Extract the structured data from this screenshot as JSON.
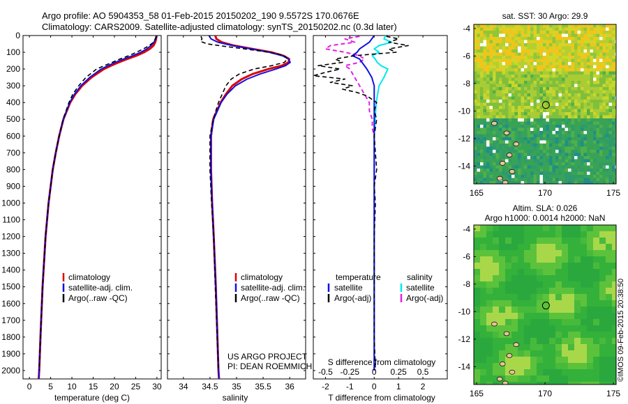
{
  "header": {
    "line1": "Argo profile: AO 5904353_58 01-Feb-2015 20150202_190 9.5572S 170.0676E",
    "line2": "Climatology: CARS2009. Satellite-adjusted climatology: synTS_20150202.nc (0.3d later)"
  },
  "colors": {
    "climatology": "#e00000",
    "satellite": "#1010e0",
    "argo": "#000000",
    "sat_salinity": "#00e8f0",
    "argo_salinity": "#e020e0"
  },
  "depth_axis": {
    "ylim": [
      0,
      2050
    ],
    "ticks": [
      "0",
      "100",
      "200",
      "300",
      "400",
      "500",
      "600",
      "700",
      "800",
      "900",
      "1000",
      "1100",
      "1200",
      "1300",
      "1400",
      "1500",
      "1600",
      "1700",
      "1800",
      "1900",
      "2000"
    ]
  },
  "chart_data": [
    {
      "type": "line",
      "name": "temperature-profile",
      "xlabel": "temperature (deg C)",
      "xlim": [
        -1.5,
        31
      ],
      "xticks": [
        "0",
        "5",
        "10",
        "15",
        "20",
        "25",
        "30"
      ],
      "legend": [
        "climatology",
        "satellite-adj. clim.",
        "Argo(..raw -QC)"
      ],
      "series": [
        {
          "name": "climatology",
          "depth": [
            0,
            20,
            40,
            60,
            80,
            100,
            120,
            140,
            160,
            180,
            200,
            250,
            300,
            350,
            400,
            500,
            600,
            700,
            800,
            1000,
            1200,
            1500,
            1800,
            2000,
            2050
          ],
          "values": [
            29.9,
            29.8,
            29.6,
            29.2,
            28.3,
            27.0,
            25.2,
            23.0,
            21.0,
            19.2,
            17.5,
            14.6,
            12.4,
            10.8,
            9.6,
            8.0,
            7.0,
            6.2,
            5.5,
            4.5,
            3.8,
            3.1,
            2.6,
            2.3,
            2.2
          ]
        },
        {
          "name": "satellite-adj. clim.",
          "depth": [
            0,
            20,
            40,
            60,
            80,
            100,
            120,
            140,
            160,
            180,
            200,
            250,
            300,
            350,
            400,
            500,
            600,
            700,
            800,
            1000,
            1200,
            1500,
            1800,
            2000,
            2050
          ],
          "values": [
            29.9,
            29.7,
            29.3,
            28.6,
            27.6,
            26.2,
            24.3,
            22.2,
            20.2,
            18.5,
            16.9,
            14.2,
            12.1,
            10.6,
            9.5,
            8.0,
            7.0,
            6.2,
            5.5,
            4.5,
            3.8,
            3.1,
            2.6,
            2.3,
            2.2
          ]
        },
        {
          "name": "Argo(..raw -QC)",
          "depth": [
            5,
            20,
            40,
            60,
            80,
            100,
            120,
            140,
            160,
            180,
            200,
            250,
            300,
            350,
            400,
            500,
            600,
            700,
            800,
            1000,
            1200,
            1500,
            1800,
            2000
          ],
          "values": [
            29.8,
            29.6,
            29.2,
            28.2,
            26.8,
            25.2,
            23.4,
            21.3,
            19.5,
            17.6,
            15.8,
            13.3,
            11.6,
            10.2,
            9.3,
            7.9,
            7.0,
            6.2,
            5.5,
            4.5,
            3.8,
            3.1,
            2.6,
            2.3
          ]
        }
      ]
    },
    {
      "type": "line",
      "name": "salinity-profile",
      "xlabel": "salinity",
      "xlim": [
        33.7,
        36.3
      ],
      "xticks": [
        "34",
        "34.5",
        "35",
        "35.5",
        "36"
      ],
      "legend": [
        "climatology",
        "satellite-adj. clim.",
        "Argo(..raw -QC)"
      ],
      "series": [
        {
          "name": "climatology",
          "depth": [
            0,
            20,
            40,
            60,
            80,
            100,
            120,
            140,
            160,
            180,
            200,
            230,
            260,
            300,
            350,
            400,
            500,
            600,
            800,
            1000,
            1200,
            1500,
            2000,
            2050
          ],
          "values": [
            34.6,
            34.62,
            34.72,
            34.95,
            35.3,
            35.65,
            35.88,
            35.99,
            35.98,
            35.85,
            35.6,
            35.3,
            35.1,
            34.92,
            34.8,
            34.7,
            34.56,
            34.52,
            34.52,
            34.54,
            34.57,
            34.61,
            34.66,
            34.67
          ]
        },
        {
          "name": "satellite-adj. clim.",
          "depth": [
            0,
            20,
            40,
            60,
            80,
            100,
            120,
            140,
            160,
            180,
            200,
            230,
            260,
            300,
            350,
            400,
            500,
            600,
            800,
            1000,
            1200,
            1500,
            2000,
            2050
          ],
          "values": [
            34.48,
            34.52,
            34.65,
            34.92,
            35.28,
            35.62,
            35.86,
            35.98,
            36.01,
            35.92,
            35.74,
            35.44,
            35.2,
            34.98,
            34.82,
            34.71,
            34.57,
            34.52,
            34.52,
            34.54,
            34.57,
            34.61,
            34.66,
            34.67
          ]
        },
        {
          "name": "Argo(..raw -QC)",
          "depth": [
            5,
            20,
            35,
            50,
            65,
            80,
            95,
            110,
            125,
            140,
            160,
            180,
            200,
            230,
            260,
            300,
            350,
            400,
            500,
            600,
            800,
            1000,
            1200,
            1500,
            2000
          ],
          "values": [
            34.33,
            34.35,
            34.32,
            34.45,
            34.78,
            35.15,
            35.5,
            35.78,
            35.92,
            35.96,
            35.9,
            35.66,
            35.33,
            35.05,
            34.9,
            34.8,
            34.73,
            34.66,
            34.56,
            34.5,
            34.5,
            34.53,
            34.57,
            34.6,
            34.66
          ]
        }
      ]
    },
    {
      "type": "line",
      "name": "difference-profile",
      "xlabel": "T difference from climatology",
      "xlabel_top": "S difference from climatology",
      "xlim": [
        -2.5,
        3
      ],
      "xticks": [
        "-2",
        "-1",
        "0",
        "1",
        "2"
      ],
      "xticks_top": [
        "-0.5",
        "-0.25",
        "0",
        "0.25",
        "0.5"
      ],
      "legend_left_title": "temperature",
      "legend_right_title": "salinity",
      "legend": [
        "satellite",
        "Argo(-adj)",
        "satellite",
        "Argo(-adj)"
      ],
      "series": [
        {
          "name": "T satellite",
          "depth": [
            0,
            40,
            80,
            100,
            120,
            140,
            160,
            200,
            250,
            300,
            400,
            500,
            700,
            1000,
            1500,
            2000
          ],
          "values": [
            0.0,
            -0.2,
            -0.6,
            -0.7,
            -0.9,
            -0.6,
            -0.5,
            -0.3,
            -0.1,
            0.0,
            0.0,
            0.0,
            0.0,
            0.0,
            0.0,
            0.0
          ]
        },
        {
          "name": "T Argo(-adj)",
          "depth": [
            5,
            20,
            40,
            60,
            80,
            100,
            120,
            140,
            160,
            180,
            200,
            220,
            240,
            260,
            280,
            300,
            320,
            340,
            360,
            400,
            450,
            500,
            600,
            700,
            800,
            900,
            1000,
            1200,
            1500,
            1800,
            2000
          ],
          "values": [
            0.5,
            1.0,
            0.6,
            1.4,
            0.6,
            0.9,
            -0.8,
            -1.6,
            -1.3,
            -2.3,
            -1.4,
            -2.0,
            -2.5,
            -1.2,
            -1.8,
            -0.9,
            -1.3,
            -0.7,
            -0.3,
            0.1,
            0.0,
            0.1,
            0.0,
            0.05,
            0.1,
            0.0,
            0.05,
            0.0,
            0.0,
            0.0,
            0.05
          ]
        },
        {
          "name": "S satellite",
          "depth": [
            0,
            20,
            40,
            60,
            80,
            100,
            120,
            140,
            160,
            180,
            200,
            250,
            300,
            400,
            600,
            1000,
            1500,
            2000
          ],
          "values": [
            0.12,
            0.1,
            0.18,
            0.05,
            0.0,
            0.05,
            -0.02,
            0.01,
            0.03,
            0.07,
            0.14,
            0.1,
            0.05,
            0.02,
            0.0,
            0.0,
            0.0,
            0.0
          ]
        },
        {
          "name": "S Argo(-adj)",
          "depth": [
            5,
            20,
            40,
            60,
            80,
            100,
            120,
            140,
            160,
            180,
            200,
            250,
            300,
            350,
            400,
            450,
            500,
            550,
            600,
            800,
            1000,
            1500,
            2000
          ],
          "values": [
            -0.15,
            -0.3,
            -0.2,
            -0.45,
            -0.5,
            -0.3,
            -0.15,
            -0.1,
            -0.15,
            -0.3,
            -0.25,
            -0.2,
            -0.15,
            -0.1,
            -0.05,
            -0.05,
            -0.02,
            -0.02,
            0.0,
            0.0,
            0.0,
            0.0,
            0.0
          ]
        }
      ]
    },
    {
      "type": "heatmap",
      "name": "sst-map",
      "title": "sat. SST: 30 Argo: 29.9",
      "xticks": [
        "165",
        "170",
        "175"
      ],
      "yticks": [
        "-4",
        "-6",
        "-8",
        "-10",
        "-12",
        "-14"
      ],
      "xlim": [
        164.8,
        175.2
      ],
      "ylim": [
        -15.3,
        -3.7
      ],
      "marker": [
        170.07,
        -9.56
      ]
    },
    {
      "type": "heatmap",
      "name": "sla-map",
      "title": "Altim. SLA: 0.026",
      "subtitle": "Argo h1000: 0.0014 h2000: NaN",
      "xticks": [
        "165",
        "170",
        "175"
      ],
      "yticks": [
        "-4",
        "-6",
        "-8",
        "-10",
        "-12",
        "-14"
      ],
      "xlim": [
        164.8,
        175.2
      ],
      "ylim": [
        -15.3,
        -3.7
      ],
      "marker": [
        170.07,
        -9.56
      ]
    }
  ],
  "annotations": {
    "project": "US ARGO PROJECT",
    "pi": "PI: DEAN ROEMMICH",
    "credit": "©IMOS 09-Feb-2015 20:38:50"
  }
}
